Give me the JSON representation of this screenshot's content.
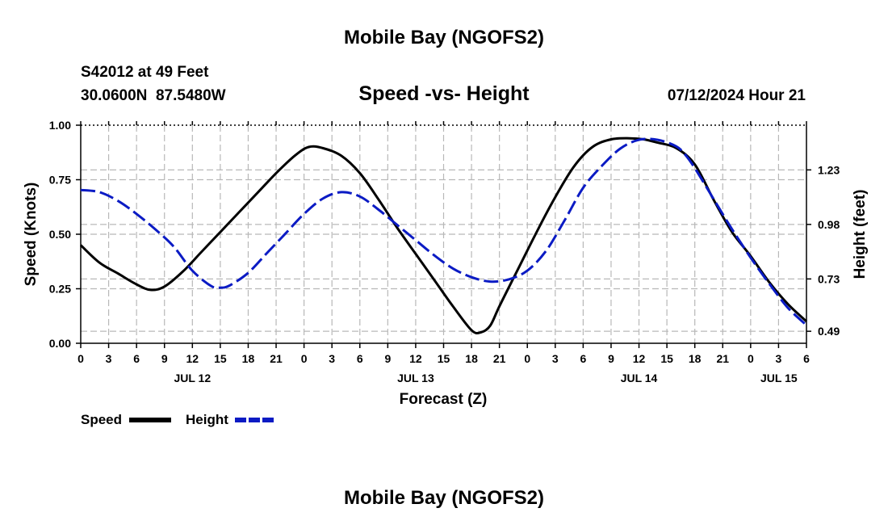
{
  "page_title": "Mobile Bay (NGOFS2)",
  "footer_title": "Mobile Bay (NGOFS2)",
  "station": {
    "name": "S42012 at 49 Feet",
    "coords": "30.0600N  87.5480W"
  },
  "valid_time": "07/12/2024 Hour 21",
  "chart_data": {
    "type": "line",
    "title": "Speed -vs- Height",
    "xlabel": "Forecast (Z)",
    "ylabel": "Speed (Knots)",
    "y2label": "Height (feet)",
    "x_unit": "hours from JUL 12 00Z",
    "xlim": [
      0,
      78
    ],
    "ylim": [
      0,
      1.0
    ],
    "y2lim": [
      0.435,
      1.435
    ],
    "y_ticks": [
      "0.00",
      "0.25",
      "0.50",
      "0.75",
      "1.00"
    ],
    "y_tick_values": [
      0,
      0.25,
      0.5,
      0.75,
      1.0
    ],
    "y2_ticks": [
      "0.49",
      "0.73",
      "0.98",
      "1.23"
    ],
    "y2_tick_values": [
      0.49,
      0.73,
      0.98,
      1.23
    ],
    "x_ticks": [
      "0",
      "3",
      "6",
      "9",
      "12",
      "15",
      "18",
      "21",
      "0",
      "3",
      "6",
      "9",
      "12",
      "15",
      "18",
      "21",
      "0",
      "3",
      "6",
      "9",
      "12",
      "15",
      "18",
      "21",
      "0",
      "3",
      "6"
    ],
    "x_tick_values": [
      0,
      3,
      6,
      9,
      12,
      15,
      18,
      21,
      24,
      27,
      30,
      33,
      36,
      39,
      42,
      45,
      48,
      51,
      54,
      57,
      60,
      63,
      66,
      69,
      72,
      75,
      78
    ],
    "date_labels": [
      {
        "label": "JUL 12",
        "x": 12
      },
      {
        "label": "JUL 13",
        "x": 36
      },
      {
        "label": "JUL 14",
        "x": 60
      },
      {
        "label": "JUL 15",
        "x": 72
      }
    ],
    "series": [
      {
        "name": "Speed",
        "axis": "left",
        "color": "#000000",
        "dash": "solid",
        "x": [
          0,
          2,
          4,
          6,
          7.5,
          9,
          11,
          13,
          15,
          17,
          19,
          21,
          23,
          24.5,
          26,
          28,
          30,
          32,
          34,
          36,
          38,
          40,
          42,
          43,
          44,
          45,
          47,
          49,
          51,
          53,
          55,
          57,
          59,
          60.5,
          62,
          64,
          66,
          68,
          70,
          72,
          74,
          76,
          78
        ],
        "y": [
          0.45,
          0.37,
          0.32,
          0.27,
          0.245,
          0.26,
          0.33,
          0.42,
          0.51,
          0.6,
          0.69,
          0.78,
          0.86,
          0.9,
          0.895,
          0.86,
          0.78,
          0.66,
          0.53,
          0.41,
          0.29,
          0.17,
          0.06,
          0.05,
          0.08,
          0.17,
          0.34,
          0.51,
          0.67,
          0.81,
          0.9,
          0.935,
          0.94,
          0.935,
          0.92,
          0.895,
          0.82,
          0.66,
          0.51,
          0.4,
          0.28,
          0.18,
          0.1
        ]
      },
      {
        "name": "Height",
        "axis": "right",
        "color": "#0b1bc4",
        "dash": "dashed",
        "x": [
          0,
          2,
          4,
          6,
          8,
          10,
          12,
          14,
          15,
          16,
          18,
          20,
          22,
          24,
          26,
          28,
          30,
          32,
          34,
          36,
          38,
          40,
          42,
          44,
          46,
          48,
          50,
          52,
          54,
          56,
          58,
          60,
          62,
          64,
          65,
          66,
          68,
          70,
          72,
          74,
          76,
          78
        ],
        "y": [
          1.138,
          1.128,
          1.088,
          1.028,
          0.958,
          0.878,
          0.768,
          0.698,
          0.69,
          0.7,
          0.758,
          0.848,
          0.938,
          1.028,
          1.098,
          1.128,
          1.108,
          1.048,
          0.978,
          0.908,
          0.838,
          0.778,
          0.738,
          0.718,
          0.728,
          0.768,
          0.858,
          0.998,
          1.148,
          1.248,
          1.328,
          1.368,
          1.368,
          1.338,
          1.298,
          1.238,
          1.098,
          0.958,
          0.828,
          0.708,
          0.598,
          0.518
        ]
      }
    ]
  }
}
